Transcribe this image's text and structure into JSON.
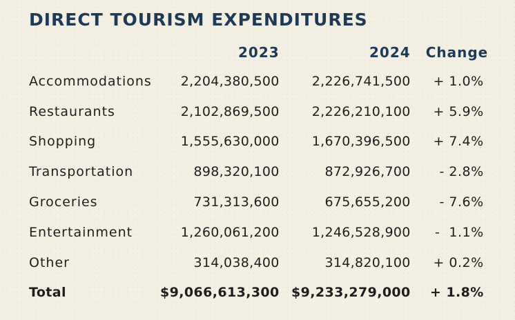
{
  "title": "DIRECT TOURISM EXPENDITURES",
  "columns": {
    "category": "",
    "y2023": "2023",
    "y2024": "2024",
    "change": "Change"
  },
  "rows": [
    {
      "category": "Accommodations",
      "y2023": "2,204,380,500",
      "y2024": "2,226,741,500",
      "change": "+ 1.0%"
    },
    {
      "category": "Restaurants",
      "y2023": "2,102,869,500",
      "y2024": "2,226,210,100",
      "change": "+ 5.9%"
    },
    {
      "category": "Shopping",
      "y2023": "1,555,630,000",
      "y2024": "1,670,396,500",
      "change": "+ 7.4%"
    },
    {
      "category": "Transportation",
      "y2023": "898,320,100",
      "y2024": "872,926,700",
      "change": "- 2.8%"
    },
    {
      "category": "Groceries",
      "y2023": "731,313,600",
      "y2024": "675,655,200",
      "change": "- 7.6%"
    },
    {
      "category": "Entertainment",
      "y2023": "1,260,061,200",
      "y2024": "1,246,528,900",
      "change": "-  1.1%"
    },
    {
      "category": "Other",
      "y2023": "314,038,400",
      "y2024": "314,820,100",
      "change": "+ 0.2%"
    }
  ],
  "total": {
    "category": "Total",
    "y2023": "$9,066,613,300",
    "y2024": "$9,233,279,000",
    "change": "+ 1.8%"
  }
}
